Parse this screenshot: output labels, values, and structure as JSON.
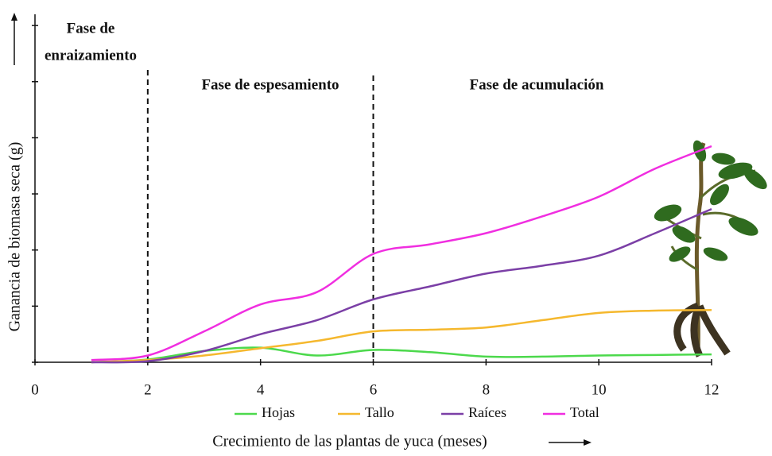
{
  "chart_data": {
    "type": "line",
    "ylabel": "Ganancia de biomasa seca (g)",
    "xlabel": "Crecimiento de las plantas de yuca (meses)",
    "annotations": [
      [
        "Fase de",
        "enraizamiento"
      ],
      "Fase de espesamiento",
      "Fase de acumulación"
    ],
    "phase_lines": [
      2,
      6
    ],
    "x": [
      1,
      2,
      3,
      4,
      5,
      6,
      7,
      8,
      9,
      10,
      11,
      12
    ],
    "series": [
      {
        "name": "Hojas",
        "color": "#4cd94c",
        "values": [
          0,
          0.05,
          0.2,
          0.26,
          0.12,
          0.22,
          0.18,
          0.1,
          0.1,
          0.12,
          0.13,
          0.14
        ]
      },
      {
        "name": "Tallo",
        "color": "#f5b82e",
        "values": [
          0,
          0.04,
          0.12,
          0.25,
          0.38,
          0.55,
          0.58,
          0.62,
          0.75,
          0.88,
          0.92,
          0.93
        ]
      },
      {
        "name": "Raíces",
        "color": "#7b3fa6",
        "values": [
          0,
          0.02,
          0.2,
          0.5,
          0.75,
          1.12,
          1.35,
          1.58,
          1.72,
          1.9,
          2.3,
          2.73
        ]
      },
      {
        "name": "Total",
        "color": "#f02ee0",
        "values": [
          0.04,
          0.12,
          0.55,
          1.03,
          1.25,
          1.93,
          2.1,
          2.3,
          2.6,
          2.95,
          3.45,
          3.85
        ]
      }
    ],
    "xlim": [
      0,
      12
    ],
    "xticks": [
      0,
      2,
      4,
      6,
      8,
      10,
      12
    ],
    "ylim": [
      0,
      6.2
    ],
    "yticks": [
      0,
      1,
      2,
      3,
      4,
      5,
      6
    ],
    "legend": "bottom"
  }
}
